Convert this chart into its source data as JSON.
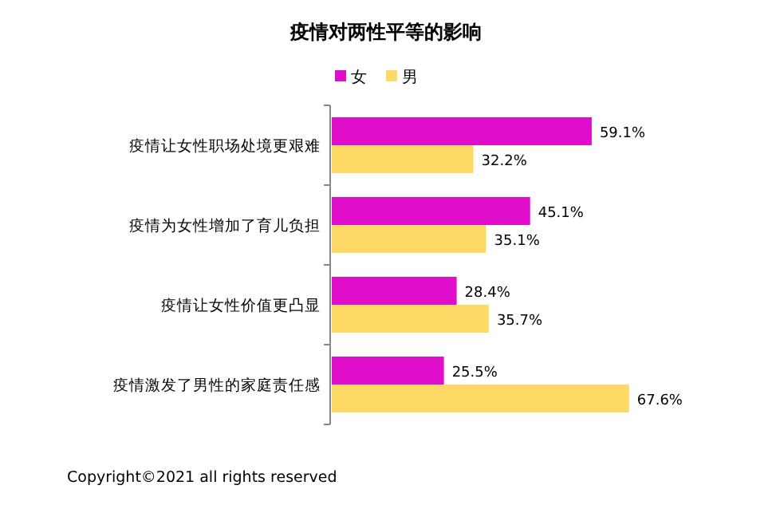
{
  "chart_data": {
    "type": "bar",
    "orientation": "horizontal",
    "title": "疫情对两性平等的影响",
    "categories": [
      "疫情让女性职场处境更艰难",
      "疫情为女性增加了育儿负担",
      "疫情让女性价值更凸显",
      "疫情激发了男性的家庭责任感"
    ],
    "series": [
      {
        "name": "女",
        "color": "#e00ecb",
        "values": [
          59.1,
          45.1,
          28.4,
          25.5
        ],
        "value_labels": [
          "59.1%",
          "45.1%",
          "28.4%",
          "25.5%"
        ]
      },
      {
        "name": "男",
        "color": "#ffd966",
        "values": [
          32.2,
          35.1,
          35.7,
          67.6
        ],
        "value_labels": [
          "32.2%",
          "35.1%",
          "35.7%",
          "67.6%"
        ]
      }
    ],
    "legend": "top",
    "annotations": [
      "Copyright©2021 all rights reserved"
    ]
  }
}
